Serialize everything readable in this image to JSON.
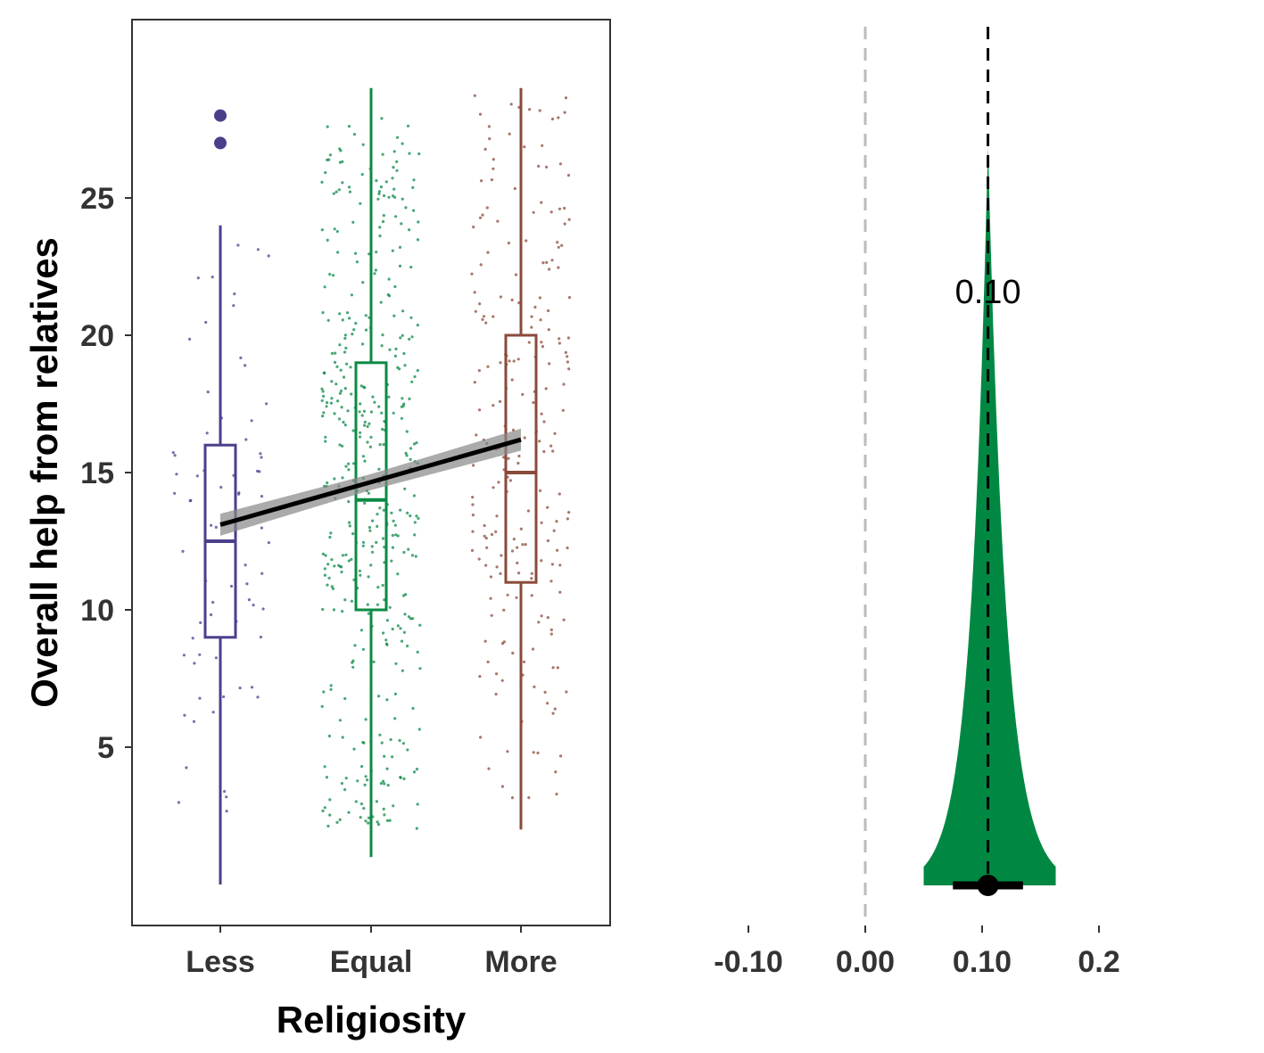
{
  "chart_data": [
    {
      "type": "box",
      "title": "",
      "xlabel": "Religiosity",
      "ylabel": "Overall help from relatives",
      "categories": [
        "Less",
        "Equal",
        "More"
      ],
      "ylim": [
        -0.5,
        31
      ],
      "yticks": [
        5,
        10,
        15,
        20,
        25
      ],
      "colors": {
        "Less": "#4b3f8c",
        "Equal": "#0b8a44",
        "More": "#8b4a3a"
      },
      "boxes": [
        {
          "category": "Less",
          "min": 0,
          "q1": 9,
          "median": 12.5,
          "q3": 16,
          "max": 24,
          "outliers": [
            27,
            28
          ]
        },
        {
          "category": "Equal",
          "min": 1,
          "q1": 10,
          "median": 14,
          "q3": 19,
          "max": 29,
          "outliers": []
        },
        {
          "category": "More",
          "min": 2,
          "q1": 11,
          "median": 15,
          "q3": 20,
          "max": 29,
          "outliers": []
        }
      ],
      "trend_line": {
        "x": [
          "Less",
          "More"
        ],
        "y": [
          13.1,
          16.2
        ],
        "ci_halfwidth": 0.4
      },
      "jitter_points": "individual responses shown as jittered points per category",
      "grid": false
    },
    {
      "type": "area",
      "title": "",
      "xlabel": "",
      "ylabel": "",
      "xticks": [
        "-0.10",
        "0.00",
        "0.10",
        "0.2"
      ],
      "xlim": [
        -0.2,
        0.25
      ],
      "posterior_mean": 0.105,
      "interval": [
        0.075,
        0.135
      ],
      "density_range": [
        0.05,
        0.163
      ],
      "annotation": "0.10",
      "reference_line": 0.0,
      "fill_color": "#008842"
    }
  ]
}
